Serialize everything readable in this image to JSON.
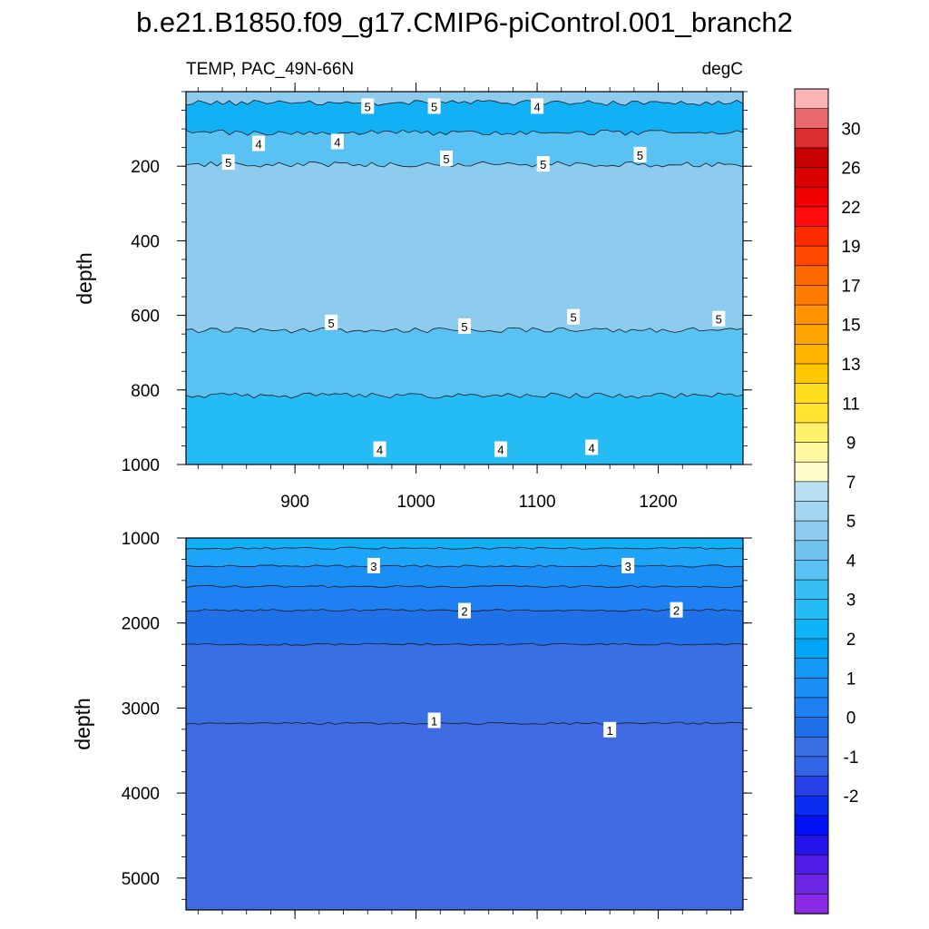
{
  "chart_data": {
    "type": "contour",
    "title": "b.e21.B1850.f09_g17.CMIP6-piControl.001_branch2",
    "left_string": "TEMP, PAC_49N-66N",
    "right_string": "degC",
    "panels": [
      {
        "name": "upper",
        "ylabel": "depth",
        "ylim": [
          0,
          1000
        ],
        "y_ticks": [
          200,
          400,
          600,
          800,
          1000
        ],
        "xlim": [
          810,
          1270
        ],
        "x_ticks": [
          900,
          1000,
          1100,
          1200
        ],
        "bands": [
          {
            "top": 0,
            "bottom": 30,
            "color": "#8dccee"
          },
          {
            "top": 30,
            "bottom": 110,
            "color": "#12b1f5"
          },
          {
            "top": 110,
            "bottom": 195,
            "color": "#5ac2f2"
          },
          {
            "top": 195,
            "bottom": 640,
            "color": "#8dccee"
          },
          {
            "top": 640,
            "bottom": 815,
            "color": "#5ac2f2"
          },
          {
            "top": 815,
            "bottom": 1000,
            "color": "#25bcf6"
          }
        ],
        "contour_labels": [
          {
            "text": "5",
            "x": 960,
            "y": 40
          },
          {
            "text": "5",
            "x": 1015,
            "y": 40
          },
          {
            "text": "4",
            "x": 1100,
            "y": 40
          },
          {
            "text": "4",
            "x": 870,
            "y": 140
          },
          {
            "text": "4",
            "x": 935,
            "y": 135
          },
          {
            "text": "5",
            "x": 845,
            "y": 190
          },
          {
            "text": "5",
            "x": 1025,
            "y": 180
          },
          {
            "text": "5",
            "x": 1105,
            "y": 195
          },
          {
            "text": "5",
            "x": 1185,
            "y": 170
          },
          {
            "text": "5",
            "x": 930,
            "y": 620
          },
          {
            "text": "5",
            "x": 1040,
            "y": 630
          },
          {
            "text": "5",
            "x": 1130,
            "y": 605
          },
          {
            "text": "5",
            "x": 1250,
            "y": 610
          },
          {
            "text": "4",
            "x": 970,
            "y": 960
          },
          {
            "text": "4",
            "x": 1070,
            "y": 960
          },
          {
            "text": "4",
            "x": 1145,
            "y": 955
          }
        ]
      },
      {
        "name": "lower",
        "ylabel": "depth",
        "ylim": [
          1000,
          5375
        ],
        "y_ticks": [
          1000,
          2000,
          3000,
          4000,
          5000
        ],
        "xlim": [
          810,
          1270
        ],
        "bands": [
          {
            "top": 1000,
            "bottom": 1120,
            "color": "#12b1f5"
          },
          {
            "top": 1120,
            "bottom": 1330,
            "color": "#1da3f7"
          },
          {
            "top": 1330,
            "bottom": 1570,
            "color": "#1b8ef5"
          },
          {
            "top": 1570,
            "bottom": 1850,
            "color": "#1e80f2"
          },
          {
            "top": 1850,
            "bottom": 2250,
            "color": "#2070e8"
          },
          {
            "top": 2250,
            "bottom": 3180,
            "color": "#3a6fe3"
          },
          {
            "top": 3180,
            "bottom": 5375,
            "color": "#416ae2"
          }
        ],
        "contour_labels": [
          {
            "text": "3",
            "x": 965,
            "y": 1330
          },
          {
            "text": "3",
            "x": 1175,
            "y": 1330
          },
          {
            "text": "2",
            "x": 1040,
            "y": 1860
          },
          {
            "text": "2",
            "x": 1215,
            "y": 1850
          },
          {
            "text": "1",
            "x": 1015,
            "y": 3150
          },
          {
            "text": "1",
            "x": 1160,
            "y": 3260
          }
        ]
      }
    ],
    "colorbar": {
      "labels": [
        "30",
        "26",
        "22",
        "19",
        "17",
        "15",
        "13",
        "11",
        "9",
        "7",
        "5",
        "4",
        "3",
        "2",
        "1",
        "0",
        "-1",
        "-2"
      ],
      "colors": [
        "#fcb4b4",
        "#e8686b",
        "#d92f30",
        "#c70000",
        "#dc0000",
        "#f00000",
        "#ff0d0d",
        "#ff2a00",
        "#ff4a00",
        "#ff6a00",
        "#ff7c00",
        "#ff9400",
        "#ffa400",
        "#ffb400",
        "#ffc800",
        "#ffdc1e",
        "#ffe432",
        "#fff06e",
        "#fff8a0",
        "#fffccc",
        "#b8e0f4",
        "#a2d6f2",
        "#8dccee",
        "#72c4ef",
        "#5ac2f2",
        "#39bef4",
        "#25bcf6",
        "#0fb4f7",
        "#00a6f5",
        "#1398f6",
        "#1b8ef5",
        "#1e80f2",
        "#2070e8",
        "#3a6fe3",
        "#3465e6",
        "#2840e8",
        "#0a2ef0",
        "#0011f5",
        "#2414ec",
        "#4f1de6",
        "#6e24e3",
        "#8a2ae5"
      ]
    }
  }
}
